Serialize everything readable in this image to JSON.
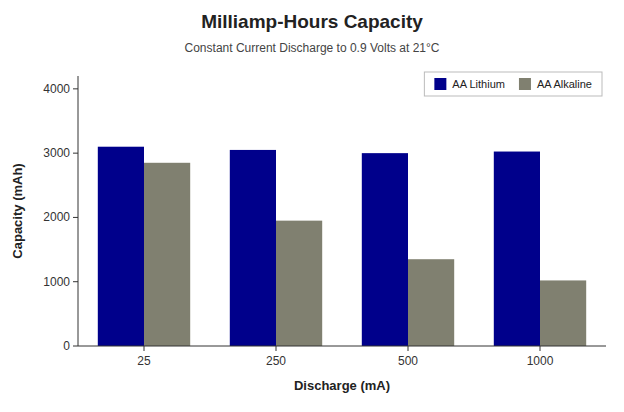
{
  "chart_data": {
    "type": "bar",
    "title": "Milliamp-Hours Capacity",
    "subtitle": "Constant Current Discharge to 0.9 Volts at 21°C",
    "xlabel": "Discharge (mA)",
    "ylabel": "Capacity (mAh)",
    "categories": [
      "25",
      "250",
      "500",
      "1000"
    ],
    "series": [
      {
        "name": "AA Lithium",
        "color": "#00008B",
        "values": [
          3100,
          3050,
          3000,
          3025
        ]
      },
      {
        "name": "AA Alkaline",
        "color": "#808070",
        "values": [
          2850,
          1950,
          1350,
          1020
        ]
      }
    ],
    "ylim": [
      0,
      4200
    ],
    "yticks": [
      0,
      1000,
      2000,
      3000,
      4000
    ],
    "grid": false,
    "legend": "upper right"
  }
}
